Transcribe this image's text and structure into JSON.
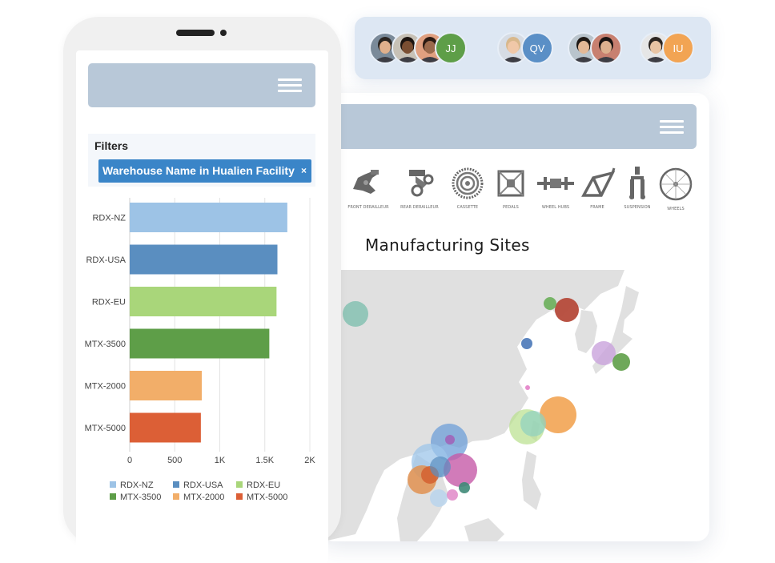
{
  "avatars": [
    {
      "name": "avatar-1",
      "kind": "photo",
      "skin": "#e0b08c",
      "hair": "#2a2420",
      "bg": "#7a8a99"
    },
    {
      "name": "avatar-2",
      "kind": "photo",
      "skin": "#7a4e32",
      "hair": "#1c1410",
      "bg": "#c7c1b6"
    },
    {
      "name": "avatar-3",
      "kind": "photo",
      "skin": "#9b6a4c",
      "hair": "#2a1a12",
      "bg": "#e0a080"
    },
    {
      "name": "avatar-jj",
      "kind": "initials",
      "text": "JJ",
      "color": "#5e9e48"
    },
    {
      "name": "avatar-5",
      "kind": "photo",
      "skin": "#f0c8a8",
      "hair": "#d8b88c",
      "bg": "#d6dce4"
    },
    {
      "name": "avatar-qv",
      "kind": "initials",
      "text": "QV",
      "color": "#5a8fc6"
    },
    {
      "name": "avatar-7",
      "kind": "photo",
      "skin": "#e3b896",
      "hair": "#1e1814",
      "bg": "#b9c4cc"
    },
    {
      "name": "avatar-8",
      "kind": "photo",
      "skin": "#dcb08e",
      "hair": "#1a1412",
      "bg": "#c88070"
    },
    {
      "name": "avatar-9",
      "kind": "photo",
      "skin": "#e8c4a4",
      "hair": "#2c2622",
      "bg": "#e6e6e6"
    },
    {
      "name": "avatar-iu",
      "kind": "initials",
      "text": "IU",
      "color": "#f2a453"
    }
  ],
  "parts": [
    {
      "label": "FRONT DERAILLEUR",
      "icon": "front-derailleur-icon"
    },
    {
      "label": "REAR DERAILLEUR",
      "icon": "rear-derailleur-icon"
    },
    {
      "label": "CASSETTE",
      "icon": "cassette-icon"
    },
    {
      "label": "PEDALS",
      "icon": "pedals-icon"
    },
    {
      "label": "WHEEL HUBS",
      "icon": "wheel-hubs-icon"
    },
    {
      "label": "FRAME",
      "icon": "frame-icon"
    },
    {
      "label": "SUSPENSION",
      "icon": "suspension-icon"
    },
    {
      "label": "WHEELS",
      "icon": "wheels-icon"
    }
  ],
  "sites_title": "Manufacturing Sites",
  "filters": {
    "title": "Filters",
    "chip": "Warehouse Name in Hualien Facility",
    "remove": "×"
  },
  "colors": {
    "header": "#b8c8d8",
    "chip": "#3a85c8",
    "map_land": "#e0e0e0"
  },
  "chart_data": {
    "type": "bar",
    "orientation": "horizontal",
    "categories": [
      "RDX-NZ",
      "RDX-USA",
      "RDX-EU",
      "MTX-3500",
      "MTX-2000",
      "MTX-5000"
    ],
    "values": [
      1750,
      1640,
      1630,
      1550,
      800,
      790
    ],
    "colors": [
      "#9dc3e6",
      "#5a8ec0",
      "#a9d67a",
      "#5e9e48",
      "#f2ae69",
      "#dc5f36"
    ],
    "xlim": [
      0,
      2000
    ],
    "xticks": [
      "0",
      "500",
      "1K",
      "1.5K",
      "2K"
    ],
    "xtick_values": [
      0,
      500,
      1000,
      1500,
      2000
    ],
    "grid": true,
    "legend": [
      "RDX-NZ",
      "RDX-USA",
      "RDX-EU",
      "MTX-3500",
      "MTX-2000",
      "MTX-5000"
    ],
    "legend_position": "bottom"
  },
  "map_bubbles": [
    {
      "c": "#7fbfaf"
    },
    {
      "c": "#b54a3a"
    },
    {
      "c": "#6aaf5a"
    },
    {
      "c": "#4a78b8"
    },
    {
      "c": "#c9a2dc"
    },
    {
      "c": "#5e9e48"
    },
    {
      "c": "#e070c0"
    },
    {
      "c": "#f2a453"
    },
    {
      "c": "#b8e08c"
    },
    {
      "c": "#8fd0c0"
    },
    {
      "c": "#6e9fd8"
    },
    {
      "c": "#a064b8"
    },
    {
      "c": "#9ec6ea"
    },
    {
      "c": "#c65aa8"
    },
    {
      "c": "#e09050"
    },
    {
      "c": "#d46030"
    },
    {
      "c": "#3f8a78"
    },
    {
      "c": "#b8d4ec"
    },
    {
      "c": "#e088c8"
    }
  ]
}
